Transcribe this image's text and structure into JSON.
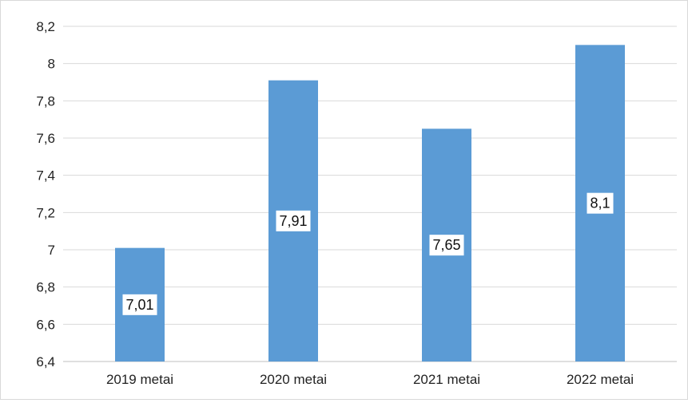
{
  "chart_data": {
    "type": "bar",
    "categories": [
      "2019 metai",
      "2020 metai",
      "2021 metai",
      "2022 metai"
    ],
    "values": [
      7.01,
      7.91,
      7.65,
      8.1
    ],
    "data_labels": [
      "7,01",
      "7,91",
      "7,65",
      "8,1"
    ],
    "y_ticks": [
      6.4,
      6.6,
      6.8,
      7,
      7.2,
      7.4,
      7.6,
      7.8,
      8,
      8.2
    ],
    "y_tick_labels": [
      "6,4",
      "6,6",
      "6,8",
      "7",
      "7,2",
      "7,4",
      "7,6",
      "7,8",
      "8",
      "8,2"
    ],
    "ylim": [
      6.4,
      8.2
    ],
    "grid": true,
    "legend": "none",
    "bar_color": "#5b9bd5",
    "grid_color": "#d9d9d9",
    "axis_color": "#bfbfbf"
  }
}
